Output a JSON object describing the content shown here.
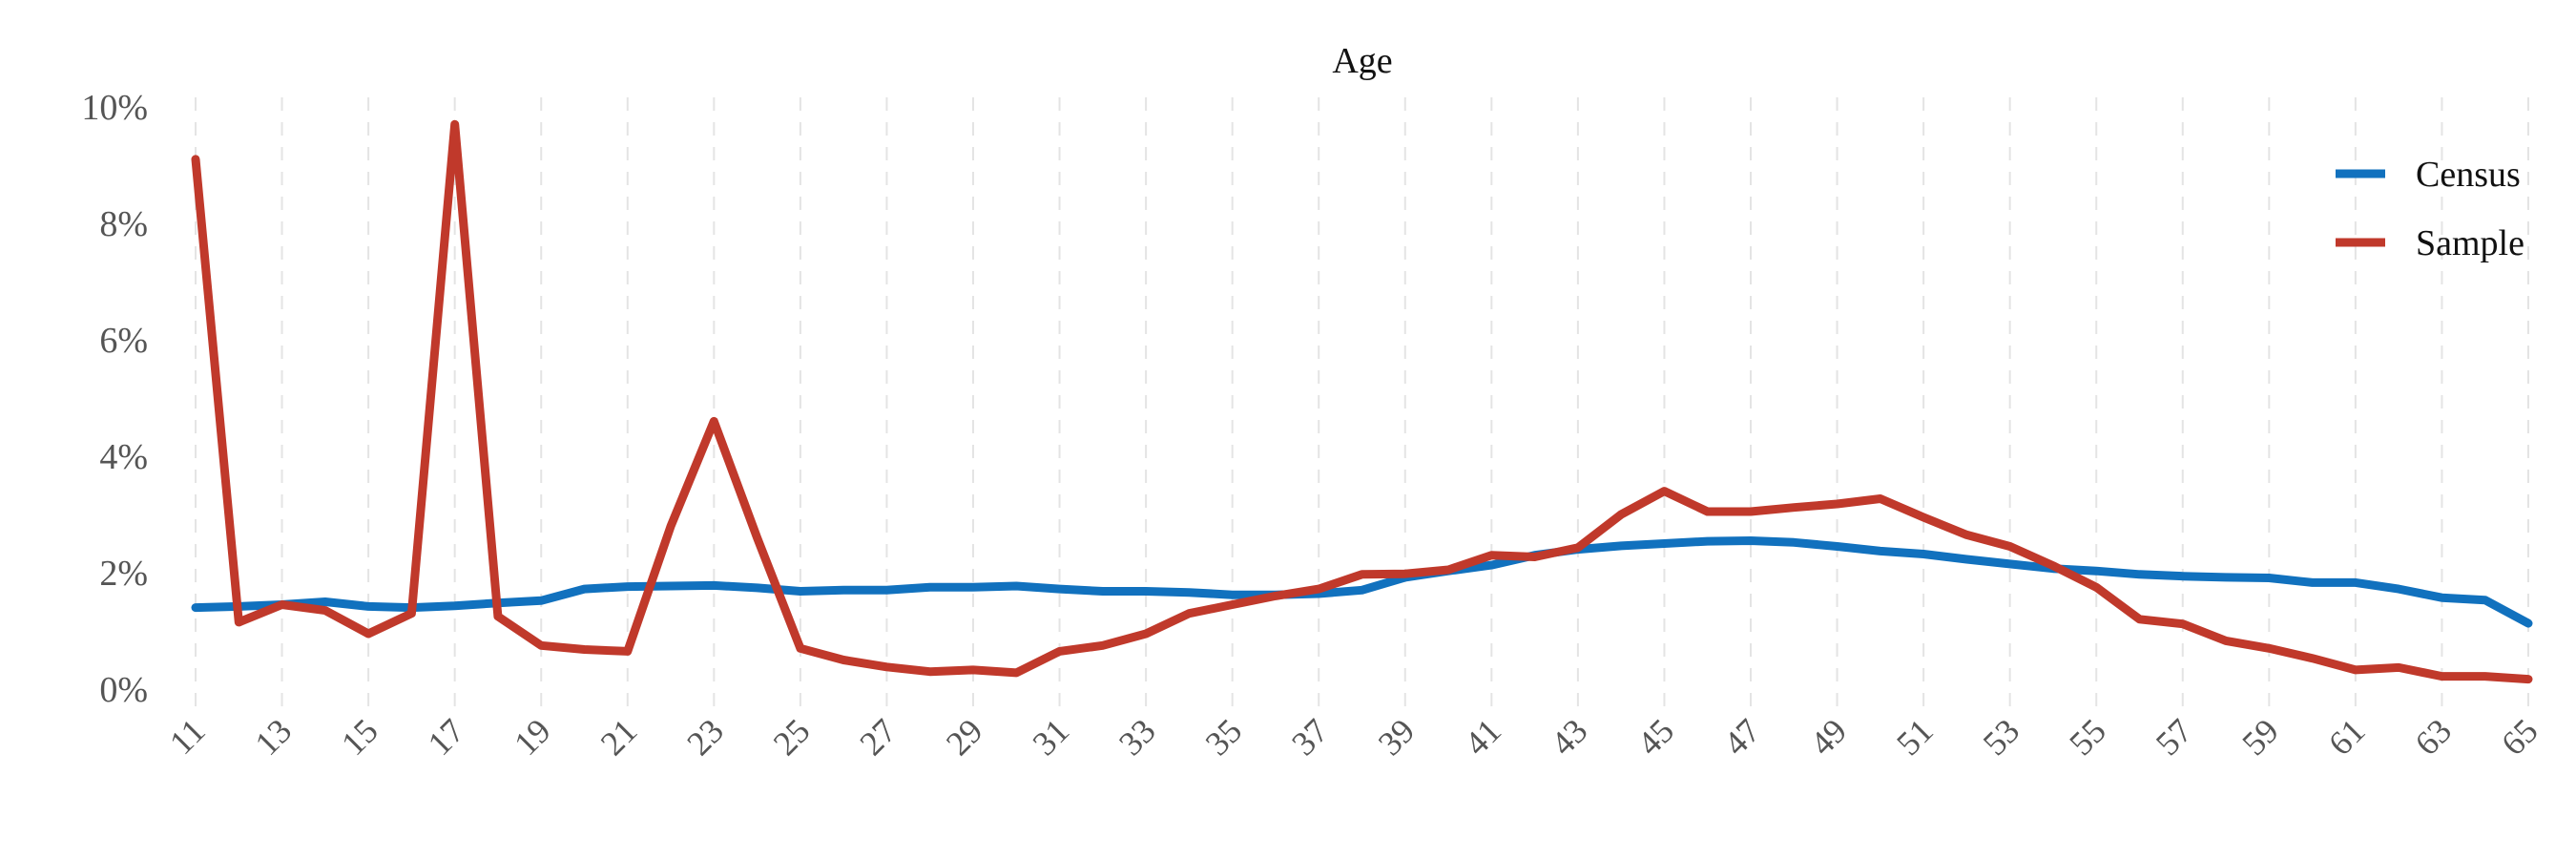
{
  "chart_data": {
    "type": "line",
    "title": "Age",
    "xlabel": "",
    "ylabel": "",
    "x": [
      11,
      12,
      13,
      14,
      15,
      16,
      17,
      18,
      19,
      20,
      21,
      22,
      23,
      24,
      25,
      26,
      27,
      28,
      29,
      30,
      31,
      32,
      33,
      34,
      35,
      36,
      37,
      38,
      39,
      40,
      41,
      42,
      43,
      44,
      45,
      46,
      47,
      48,
      49,
      50,
      51,
      52,
      53,
      54,
      55,
      56,
      57,
      58,
      59,
      60,
      61,
      62,
      63,
      64,
      65
    ],
    "x_tick_labels": [
      "11",
      "13",
      "15",
      "17",
      "19",
      "21",
      "23",
      "25",
      "27",
      "29",
      "31",
      "33",
      "35",
      "37",
      "39",
      "41",
      "43",
      "45",
      "47",
      "49",
      "51",
      "53",
      "55",
      "57",
      "59",
      "61",
      "63",
      "65"
    ],
    "y_tick_labels": [
      "0%",
      "2%",
      "4%",
      "6%",
      "8%",
      "10%"
    ],
    "xlim": [
      11,
      65
    ],
    "ylim": [
      0,
      10
    ],
    "grid": "vertical dashed",
    "legend_position": "top-right",
    "series": [
      {
        "name": "Census",
        "color": "#1171be",
        "values": [
          1.4,
          1.42,
          1.45,
          1.5,
          1.42,
          1.4,
          1.43,
          1.48,
          1.52,
          1.72,
          1.76,
          1.77,
          1.78,
          1.74,
          1.68,
          1.7,
          1.7,
          1.75,
          1.75,
          1.77,
          1.72,
          1.68,
          1.68,
          1.66,
          1.62,
          1.62,
          1.64,
          1.7,
          1.92,
          2.03,
          2.13,
          2.3,
          2.4,
          2.46,
          2.5,
          2.54,
          2.55,
          2.52,
          2.45,
          2.37,
          2.32,
          2.23,
          2.15,
          2.07,
          2.03,
          1.97,
          1.94,
          1.92,
          1.91,
          1.83,
          1.83,
          1.72,
          1.57,
          1.53,
          1.13
        ]
      },
      {
        "name": "Sample",
        "color": "#c0392b",
        "values": [
          9.1,
          1.15,
          1.45,
          1.35,
          0.95,
          1.3,
          9.7,
          1.25,
          0.75,
          0.68,
          0.65,
          2.8,
          4.6,
          2.6,
          0.7,
          0.5,
          0.38,
          0.3,
          0.33,
          0.28,
          0.65,
          0.75,
          0.95,
          1.3,
          1.45,
          1.6,
          1.72,
          1.97,
          1.98,
          2.05,
          2.3,
          2.27,
          2.43,
          3.0,
          3.4,
          3.05,
          3.05,
          3.12,
          3.18,
          3.27,
          2.95,
          2.65,
          2.45,
          2.12,
          1.75,
          1.2,
          1.12,
          0.83,
          0.7,
          0.53,
          0.33,
          0.37,
          0.22,
          0.22,
          0.17
        ]
      }
    ]
  }
}
